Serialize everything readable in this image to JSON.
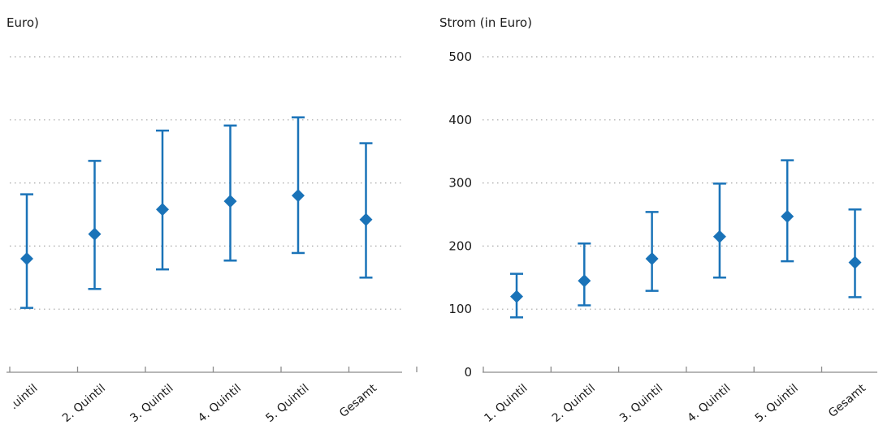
{
  "colors": {
    "marker": "#1a73b8",
    "grid": "#a6a6a6",
    "axis": "#8c8c8c",
    "text": "#1a1a1a"
  },
  "chart_data": [
    {
      "type": "scatter",
      "ylabel": "Euro)",
      "show_y_ticks": false,
      "ylim": [
        0,
        500
      ],
      "yticks": [
        0,
        100,
        200,
        300,
        400,
        500
      ],
      "grid": true,
      "categories": [
        ".uintil",
        "2. Quintil",
        "3. Quintil",
        "4. Quintil",
        "5. Quintil",
        "Gesamt"
      ],
      "values": [
        180,
        219,
        258,
        271,
        280,
        242
      ],
      "lower": [
        102,
        132,
        163,
        177,
        189,
        150
      ],
      "upper": [
        282,
        335,
        383,
        391,
        404,
        363
      ]
    },
    {
      "type": "scatter",
      "ylabel": "Strom (in Euro)",
      "show_y_ticks": true,
      "ylim": [
        0,
        500
      ],
      "yticks": [
        0,
        100,
        200,
        300,
        400,
        500
      ],
      "grid": true,
      "categories": [
        "1. Quintil",
        "2. Quintil",
        "3. Quintil",
        "4. Quintil",
        "5. Quintil",
        "Gesamt"
      ],
      "values": [
        120,
        145,
        180,
        215,
        247,
        174
      ],
      "lower": [
        87,
        106,
        129,
        150,
        176,
        119
      ],
      "upper": [
        156,
        204,
        254,
        299,
        336,
        258
      ]
    }
  ]
}
